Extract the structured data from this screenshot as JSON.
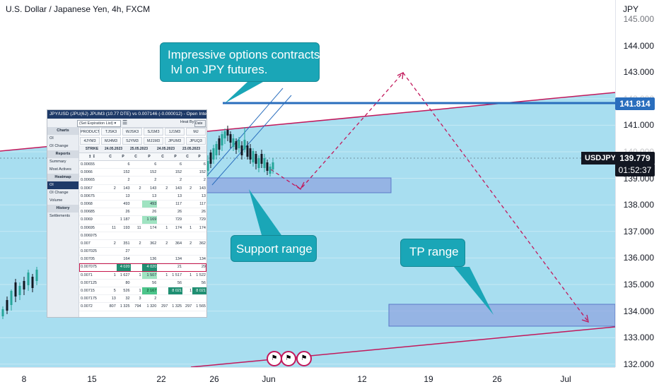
{
  "chart_title": "U.S. Dollar / Japanese Yen, 4h, FXCM",
  "currency_label": "JPY",
  "y_ticks": [
    "145.000",
    "144.000",
    "143.000",
    "142.000",
    "141.000",
    "140.000",
    "139.000",
    "138.000",
    "137.000",
    "136.000",
    "135.000",
    "134.000",
    "133.000",
    "132.000"
  ],
  "x_ticks": [
    "8",
    "15",
    "22",
    "26",
    "Jun",
    "12",
    "19",
    "26",
    "Jul"
  ],
  "price_labels": {
    "level": "141.814",
    "symbol": "USDJPY",
    "current": "139.779",
    "countdown": "01:52:37"
  },
  "colors": {
    "background": "#a8def0",
    "level_line": "#2a6ebd",
    "trend_line": "#c2185b",
    "callout": "#1aa6b7",
    "zone": "#8fa6e0",
    "candle_up": "#26a69a",
    "candle_down": "#131722"
  },
  "callouts": {
    "options": "Impressive options contracts\n lvl on JPY futures.",
    "support": "Support range",
    "tp": "TP range"
  },
  "options_panel": {
    "header": "JPY/USD (JPU(6J) JPUM3 (10.77 DTE) vs 0.007146 (-0.000012) - Open Interest M",
    "expiration_select": "(Set Expiration List)",
    "heat_by_label": "Heat By:",
    "heat_by_value": "Date",
    "sidebar": [
      {
        "label": "Charts",
        "type": "header"
      },
      {
        "label": "OI",
        "type": "item"
      },
      {
        "label": "OI Change",
        "type": "item"
      },
      {
        "label": "Reports",
        "type": "header"
      },
      {
        "label": "Summary",
        "type": "item"
      },
      {
        "label": "Most Actives",
        "type": "item"
      },
      {
        "label": "Heatmap",
        "type": "header"
      },
      {
        "label": "OI",
        "type": "active"
      },
      {
        "label": "OI Change",
        "type": "item"
      },
      {
        "label": "Volume",
        "type": "item"
      },
      {
        "label": "History",
        "type": "header"
      },
      {
        "label": "Settlements",
        "type": "item"
      }
    ],
    "products_row1": [
      "PRODUCT (JPU)",
      "TJSK3",
      "WJSK3",
      "SJ1M3",
      "1J1M3",
      "MJ"
    ],
    "products_row2": [
      "4JYM3",
      "MJ4M3",
      "SJYM3",
      "MJ1M3",
      "JPUM3",
      "JPUQ3"
    ],
    "table_header": [
      "STRIKE",
      "24.05.2023",
      "",
      "25.05.2023",
      "",
      "24.05.2023",
      "",
      "23.05.2023",
      ""
    ],
    "sub_header": [
      "↥ ↧",
      "C",
      "P",
      "C",
      "P",
      "C",
      "P",
      "C",
      "P"
    ],
    "rows": [
      [
        "0.00655",
        "",
        "6",
        "",
        "6",
        "",
        "6",
        "",
        "6"
      ],
      [
        "0.0066",
        "",
        "152",
        "",
        "152",
        "",
        "152",
        "",
        "152"
      ],
      [
        "0.00665",
        "",
        "2",
        "",
        "2",
        "",
        "2",
        "",
        "2"
      ],
      [
        "0.0067",
        "2",
        "143",
        "2",
        "143",
        "2",
        "143",
        "2",
        "143"
      ],
      [
        "0.00675",
        "",
        "13",
        "",
        "13",
        "",
        "13",
        "",
        "13"
      ],
      [
        "0.0068",
        "",
        "493",
        "",
        "493",
        "",
        "117",
        "",
        "117"
      ],
      [
        "0.00685",
        "",
        "26",
        "",
        "26",
        "",
        "26",
        "",
        "26"
      ],
      [
        "0.0069",
        "",
        "1 187",
        "",
        "1 169",
        "",
        "729",
        "",
        "729"
      ],
      [
        "0.00695",
        "11",
        "193",
        "11",
        "174",
        "1",
        "174",
        "1",
        "174"
      ],
      [
        "0.006975",
        "",
        "",
        "",
        "",
        "",
        "",
        "",
        ""
      ],
      [
        "0.007",
        "2",
        "351",
        "2",
        "362",
        "2",
        "364",
        "2",
        "362"
      ],
      [
        "0.007025",
        "",
        "27",
        "",
        "",
        "",
        "",
        "",
        ""
      ],
      [
        "0.00705",
        "",
        "164",
        "",
        "136",
        "",
        "134",
        "",
        "134"
      ],
      [
        "0.007075",
        "",
        "4 020",
        "",
        "4 020",
        "",
        "21",
        "",
        "29"
      ],
      [
        "0.0071",
        "1",
        "1 627",
        "1",
        "1 507",
        "1",
        "1 517",
        "1",
        "1 522"
      ],
      [
        "0.007125",
        "",
        "80",
        "",
        "56",
        "",
        "56",
        "",
        "56"
      ],
      [
        "0.00715",
        "5",
        "526",
        "1",
        "2 167",
        "",
        "8 021",
        "1",
        "8 021"
      ],
      [
        "0.007175",
        "13",
        "32",
        "3",
        "2",
        "",
        "",
        "",
        ""
      ],
      [
        "0.0072",
        "807",
        "1 325",
        "794",
        "1 320",
        "297",
        "1 325",
        "297",
        "1 565"
      ]
    ]
  }
}
